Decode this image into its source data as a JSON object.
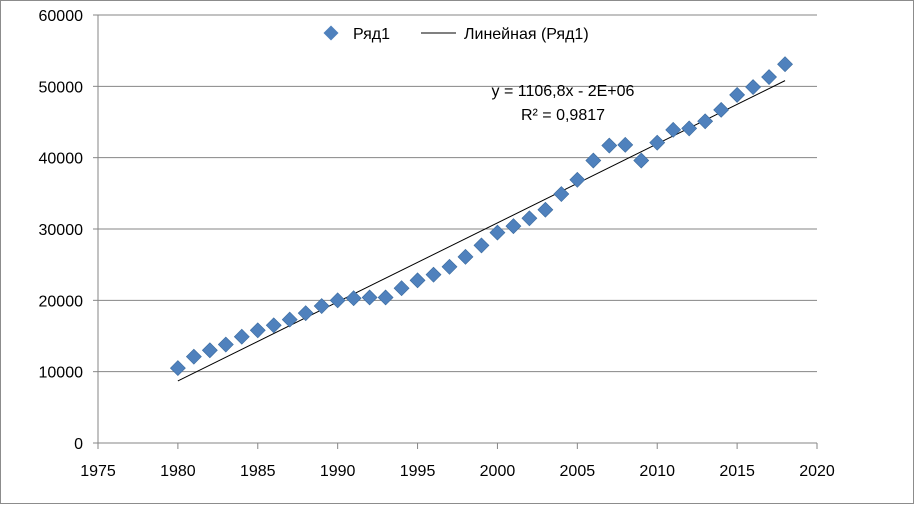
{
  "chart_data": {
    "type": "scatter",
    "xlim": [
      1975,
      2020
    ],
    "ylim": [
      0,
      60000
    ],
    "x_ticks": [
      "1975",
      "1980",
      "1985",
      "1990",
      "1995",
      "2000",
      "2005",
      "2010",
      "2015",
      "2020"
    ],
    "y_ticks": [
      "0",
      "10000",
      "20000",
      "30000",
      "40000",
      "50000",
      "60000"
    ],
    "grid": "horizontal",
    "legend_position": "top",
    "series": [
      {
        "name": "Ряд1",
        "color": "#4F81BD",
        "marker": "diamond",
        "x": [
          1980,
          1981,
          1982,
          1983,
          1984,
          1985,
          1986,
          1987,
          1988,
          1989,
          1990,
          1991,
          1992,
          1993,
          1994,
          1995,
          1996,
          1997,
          1998,
          1999,
          2000,
          2001,
          2002,
          2003,
          2004,
          2005,
          2006,
          2007,
          2008,
          2009,
          2010,
          2011,
          2012,
          2013,
          2014,
          2015,
          2016,
          2017,
          2018
        ],
        "y": [
          10500,
          12100,
          13000,
          13800,
          14900,
          15800,
          16500,
          17300,
          18200,
          19200,
          20000,
          20300,
          20400,
          20400,
          21700,
          22800,
          23600,
          24700,
          26100,
          27700,
          29500,
          30400,
          31500,
          32700,
          34900,
          36900,
          39600,
          41700,
          41800,
          39600,
          42100,
          43900,
          44100,
          45100,
          46700,
          48800,
          49900,
          51300,
          53100
        ]
      }
    ],
    "trendline": {
      "name": "Линейная (Ряд1)",
      "color": "#000000",
      "x": [
        1980,
        2018
      ],
      "y": [
        8700,
        50800
      ]
    },
    "annotation": {
      "equation": "y = 1106,8x - 2E+06",
      "r_squared": "R² = 0,9817"
    }
  }
}
